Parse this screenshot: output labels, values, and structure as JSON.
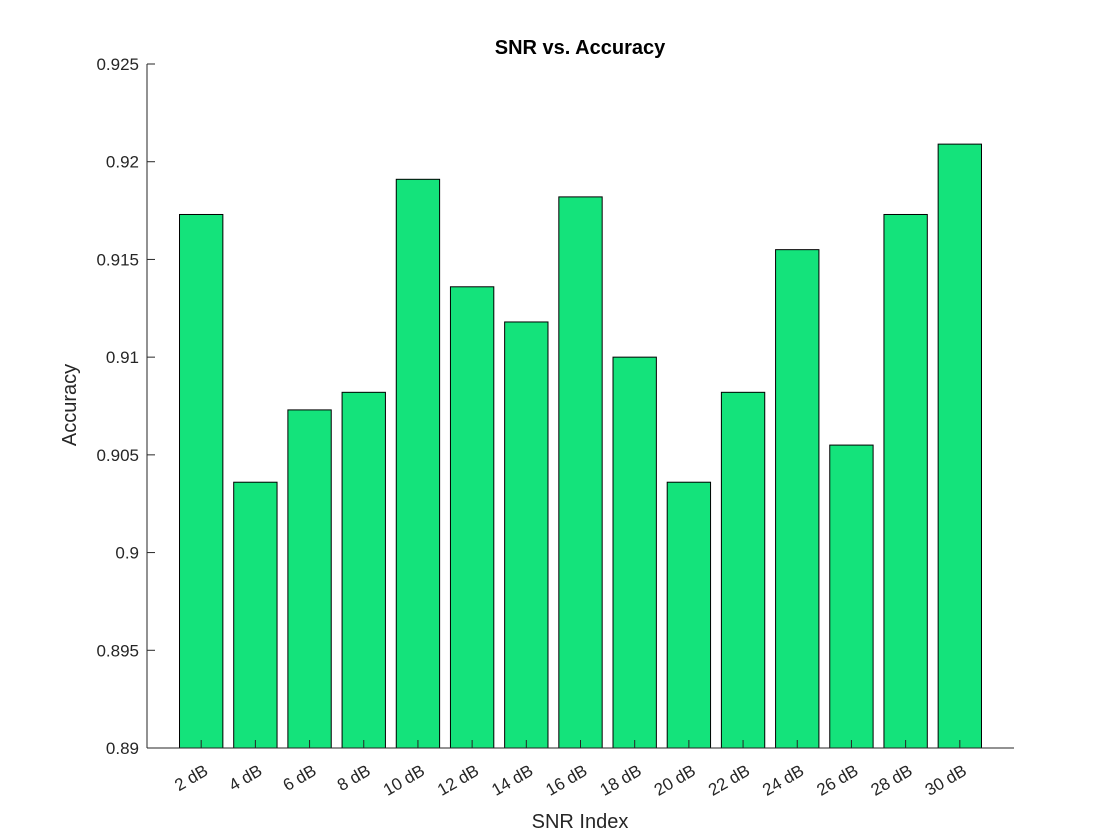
{
  "chart_data": {
    "type": "bar",
    "title": "SNR vs. Accuracy",
    "xlabel": "SNR Index",
    "ylabel": "Accuracy",
    "categories": [
      "2 dB",
      "4 dB",
      "6 dB",
      "8 dB",
      "10 dB",
      "12 dB",
      "14 dB",
      "16 dB",
      "18 dB",
      "20 dB",
      "22 dB",
      "24 dB",
      "26 dB",
      "28 dB",
      "30 dB"
    ],
    "values": [
      0.9173,
      0.9036,
      0.9073,
      0.9082,
      0.9191,
      0.9136,
      0.9118,
      0.9182,
      0.91,
      0.9036,
      0.9082,
      0.9155,
      0.9055,
      0.9173,
      0.9209
    ],
    "ylim": [
      0.89,
      0.925
    ],
    "yticks": [
      "0.89",
      "0.895",
      "0.9",
      "0.905",
      "0.91",
      "0.915",
      "0.92",
      "0.925"
    ],
    "grid": false,
    "bar_color": "#14e37b"
  }
}
